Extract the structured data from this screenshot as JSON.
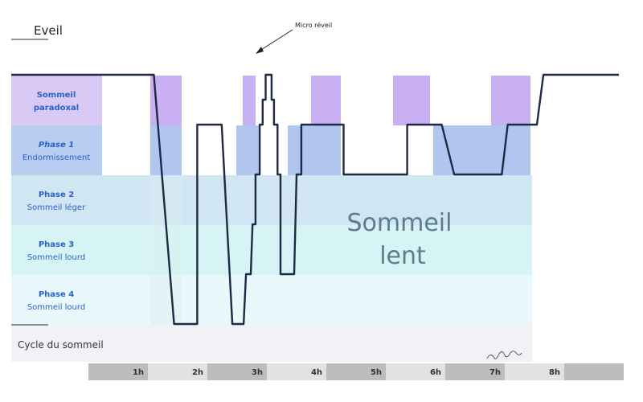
{
  "chart_data": {
    "type": "line",
    "title": "",
    "wake_label": "Eveil",
    "annotation": "Micro réveil",
    "center_label": [
      "Sommeil",
      "lent"
    ],
    "bottom_label": "Cycle du sommeil",
    "stages": [
      {
        "bold": "Sommeil",
        "light": "paradoxal",
        "bold2": true,
        "italic": false,
        "color": "#d9c9f5",
        "bar_color": "#c8b0f2"
      },
      {
        "bold": "Phase 1",
        "light": "Endormissement",
        "italic": true,
        "color": "#b8cdef",
        "bar_color": "#b0c6ee"
      },
      {
        "bold": "Phase 2",
        "light": "Sommeil léger",
        "italic": false,
        "color": "#d0e6f3",
        "bar_color": "#d0e6f3"
      },
      {
        "bold": "Phase 3",
        "light": "Sommeil lourd",
        "italic": false,
        "color": "#d6f3f6",
        "bar_color": "#d6f3f6"
      },
      {
        "bold": "Phase 4",
        "light": "Sommeil lourd",
        "italic": false,
        "color": "#e8f8fb",
        "bar_color": "#e8f8fb"
      }
    ],
    "hours": [
      "1h",
      "2h",
      "3h",
      "4h",
      "5h",
      "6h",
      "7h",
      "8h"
    ],
    "colors": {
      "line": "#1e2a44",
      "stage_text": "#2a62c6",
      "axis_dark": "#bdbdbd",
      "axis_light": "#e2e2e2",
      "center_text": "#5f7c8a"
    },
    "hypnogram": [
      [
        0,
        5
      ],
      [
        1.1,
        5
      ],
      [
        1.44,
        0
      ],
      [
        1.83,
        0
      ],
      [
        1.83,
        4
      ],
      [
        2.24,
        4
      ],
      [
        2.42,
        0
      ],
      [
        2.61,
        0
      ],
      [
        2.65,
        1
      ],
      [
        2.73,
        1
      ],
      [
        2.76,
        2
      ],
      [
        2.81,
        2
      ],
      [
        2.81,
        3
      ],
      [
        2.88,
        3
      ],
      [
        2.88,
        4
      ],
      [
        2.93,
        4
      ],
      [
        2.93,
        4.5
      ],
      [
        2.98,
        4.5
      ],
      [
        2.98,
        5
      ],
      [
        3.08,
        5
      ],
      [
        3.08,
        4.5
      ],
      [
        3.12,
        4.5
      ],
      [
        3.12,
        4
      ],
      [
        3.18,
        4
      ],
      [
        3.18,
        3
      ],
      [
        3.23,
        3
      ],
      [
        3.23,
        1
      ],
      [
        3.46,
        1
      ],
      [
        3.5,
        3
      ],
      [
        3.58,
        3
      ],
      [
        3.58,
        4
      ],
      [
        3.87,
        4
      ],
      [
        4.29,
        4
      ],
      [
        4.29,
        3
      ],
      [
        5.36,
        3
      ],
      [
        5.36,
        4
      ],
      [
        5.94,
        4
      ],
      [
        6.15,
        3
      ],
      [
        6.95,
        3
      ],
      [
        7.05,
        4
      ],
      [
        7.54,
        4
      ],
      [
        7.65,
        5
      ],
      [
        8.75,
        5
      ]
    ]
  }
}
